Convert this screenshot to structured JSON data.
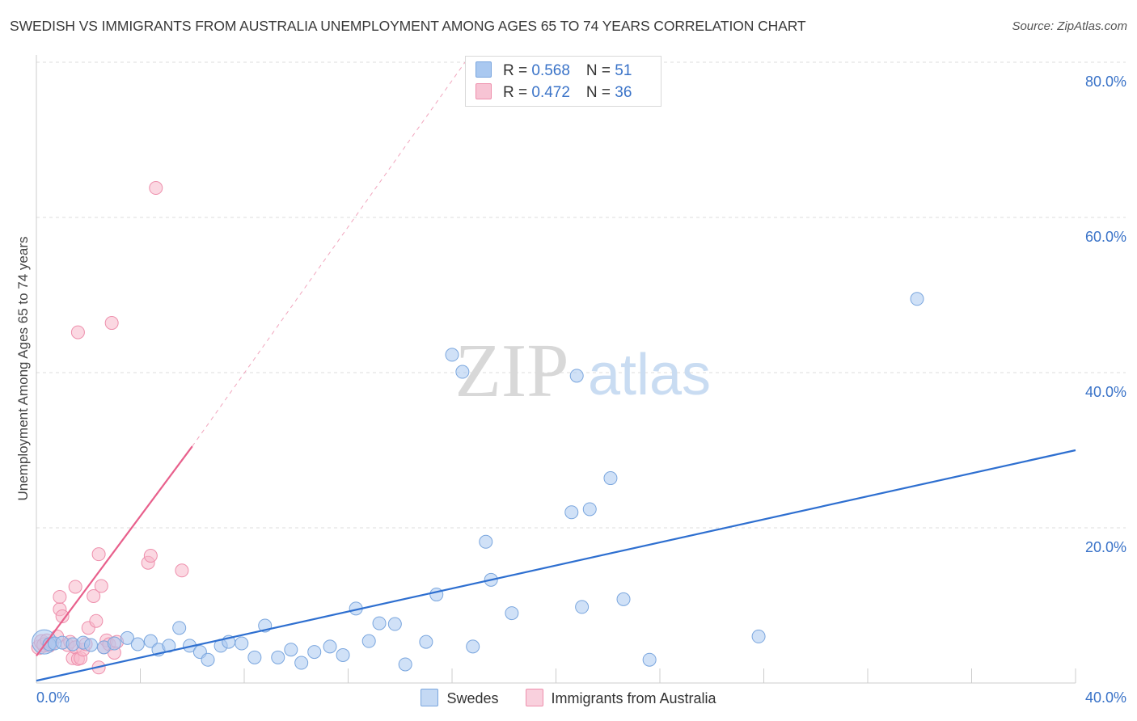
{
  "header": {
    "title": "SWEDISH VS IMMIGRANTS FROM AUSTRALIA UNEMPLOYMENT AMONG AGES 65 TO 74 YEARS CORRELATION CHART",
    "source": "Source: ZipAtlas.com"
  },
  "watermark": {
    "zip": "ZIP",
    "atlas": "atlas"
  },
  "legend": {
    "swedes": {
      "r_label": "R = ",
      "r_value": "0.568",
      "n_label": "N = ",
      "n_value": "51"
    },
    "australia": {
      "r_label": "R = ",
      "r_value": "0.472",
      "n_label": "N = ",
      "n_value": "36"
    }
  },
  "colors": {
    "swedes_fill": "#a9c8f0",
    "swedes_stroke": "#7aa6de",
    "swedes_line": "#2e6fd0",
    "australia_fill": "#f7b8cb",
    "australia_stroke": "#ee8fac",
    "australia_line": "#e8608c",
    "tick_label": "#3a73c8",
    "grid": "#dedede"
  },
  "chart_data": {
    "type": "scatter",
    "title": "SWEDISH VS IMMIGRANTS FROM AUSTRALIA UNEMPLOYMENT AMONG AGES 65 TO 74 YEARS CORRELATION CHART",
    "xlabel": "",
    "ylabel": "Unemployment Among Ages 65 to 74 years",
    "xlim": [
      0,
      40
    ],
    "ylim": [
      0,
      80
    ],
    "x_tick_labels": [
      "0.0%",
      "40.0%"
    ],
    "y_ticks": [
      20,
      40,
      60,
      80
    ],
    "y_tick_labels": [
      "20.0%",
      "40.0%",
      "60.0%",
      "80.0%"
    ],
    "series": [
      {
        "name": "Swedes",
        "r": 0.568,
        "n": 51,
        "trend": {
          "x": [
            0,
            40
          ],
          "y": [
            0.3,
            30.0
          ]
        },
        "points": [
          [
            0.3,
            5.3
          ],
          [
            0.5,
            5.0
          ],
          [
            0.7,
            5.1
          ],
          [
            1.0,
            5.2
          ],
          [
            1.4,
            5.0
          ],
          [
            1.8,
            5.2
          ],
          [
            2.1,
            4.9
          ],
          [
            2.6,
            4.6
          ],
          [
            3.0,
            5.1
          ],
          [
            3.5,
            5.8
          ],
          [
            3.9,
            5.0
          ],
          [
            4.4,
            5.4
          ],
          [
            4.7,
            4.3
          ],
          [
            5.1,
            4.8
          ],
          [
            5.5,
            7.1
          ],
          [
            5.9,
            4.8
          ],
          [
            6.3,
            4.0
          ],
          [
            6.6,
            3.0
          ],
          [
            7.1,
            4.8
          ],
          [
            7.4,
            5.3
          ],
          [
            7.9,
            5.1
          ],
          [
            8.4,
            3.3
          ],
          [
            8.8,
            7.4
          ],
          [
            9.3,
            3.3
          ],
          [
            9.8,
            4.3
          ],
          [
            10.2,
            2.6
          ],
          [
            10.7,
            4.0
          ],
          [
            11.3,
            4.7
          ],
          [
            11.8,
            3.6
          ],
          [
            12.3,
            9.6
          ],
          [
            12.8,
            5.4
          ],
          [
            13.2,
            7.7
          ],
          [
            13.8,
            7.6
          ],
          [
            14.2,
            2.4
          ],
          [
            15.0,
            5.3
          ],
          [
            15.4,
            11.4
          ],
          [
            16.0,
            42.3
          ],
          [
            16.4,
            40.1
          ],
          [
            16.8,
            4.7
          ],
          [
            17.3,
            18.2
          ],
          [
            17.5,
            13.3
          ],
          [
            20.8,
            39.6
          ],
          [
            20.6,
            22.0
          ],
          [
            21.3,
            22.4
          ],
          [
            21.0,
            9.8
          ],
          [
            22.1,
            26.4
          ],
          [
            22.6,
            10.8
          ],
          [
            23.6,
            3.0
          ],
          [
            27.8,
            6.0
          ],
          [
            33.9,
            49.5
          ],
          [
            18.3,
            9.0
          ]
        ]
      },
      {
        "name": "Immigrants from Australia",
        "r": 0.472,
        "n": 36,
        "trend_solid": {
          "x": [
            0,
            6.0
          ],
          "y": [
            3.5,
            30.5
          ]
        },
        "trend_dashed": {
          "x": [
            6.0,
            16.5
          ],
          "y": [
            30.5,
            80.0
          ]
        },
        "points": [
          [
            0.1,
            4.6
          ],
          [
            0.2,
            5.3
          ],
          [
            0.3,
            4.9
          ],
          [
            0.4,
            5.5
          ],
          [
            0.5,
            4.8
          ],
          [
            0.6,
            5.1
          ],
          [
            0.8,
            6.0
          ],
          [
            0.9,
            9.5
          ],
          [
            0.9,
            11.1
          ],
          [
            1.0,
            8.6
          ],
          [
            1.2,
            4.9
          ],
          [
            1.3,
            5.3
          ],
          [
            1.4,
            3.2
          ],
          [
            1.5,
            4.6
          ],
          [
            1.5,
            12.4
          ],
          [
            1.6,
            3.1
          ],
          [
            1.6,
            45.2
          ],
          [
            1.7,
            3.2
          ],
          [
            1.8,
            4.3
          ],
          [
            1.9,
            5.0
          ],
          [
            2.0,
            7.1
          ],
          [
            2.2,
            11.2
          ],
          [
            2.3,
            8.0
          ],
          [
            2.4,
            2.0
          ],
          [
            2.4,
            16.6
          ],
          [
            2.5,
            12.5
          ],
          [
            2.6,
            4.6
          ],
          [
            2.7,
            5.5
          ],
          [
            2.8,
            5.0
          ],
          [
            2.9,
            46.4
          ],
          [
            3.0,
            3.9
          ],
          [
            3.1,
            5.3
          ],
          [
            4.3,
            15.5
          ],
          [
            4.4,
            16.4
          ],
          [
            4.6,
            63.8
          ],
          [
            5.6,
            14.5
          ]
        ]
      }
    ]
  },
  "bottom_legend": {
    "swedes": "Swedes",
    "australia": "Immigrants from Australia"
  }
}
